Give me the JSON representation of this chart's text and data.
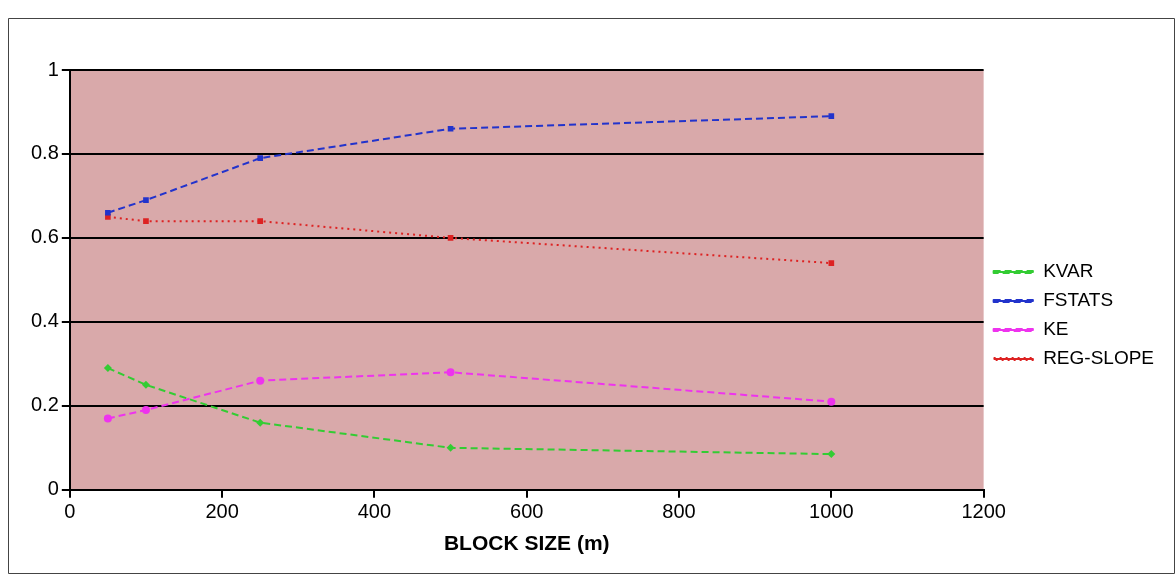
{
  "chart_data": {
    "type": "line",
    "xlabel": "BLOCK SIZE (m)",
    "x": [
      50,
      100,
      250,
      500,
      1000
    ],
    "series": [
      {
        "name": "KVAR",
        "color": "#33cc33",
        "values": [
          0.29,
          0.25,
          0.16,
          0.1,
          0.085
        ],
        "marker": "diamond",
        "line_style": "dashed"
      },
      {
        "name": "FSTATS",
        "color": "#2233cc",
        "values": [
          0.66,
          0.69,
          0.79,
          0.86,
          0.89
        ],
        "marker": "square",
        "line_style": "dashed"
      },
      {
        "name": "KE",
        "color": "#ee33ee",
        "values": [
          0.17,
          0.19,
          0.26,
          0.28,
          0.21
        ],
        "marker": "circle",
        "line_style": "dashed"
      },
      {
        "name": "REG-SLOPE",
        "color": "#dd2222",
        "values": [
          0.65,
          0.64,
          0.64,
          0.6,
          0.54
        ],
        "marker": "square",
        "line_style": "dotted"
      }
    ],
    "xlim": [
      0,
      1200
    ],
    "xticks": [
      0,
      200,
      400,
      600,
      800,
      1000,
      1200
    ],
    "ylim": [
      0,
      1
    ],
    "yticks": [
      0,
      0.2,
      0.4,
      0.6,
      0.8,
      1
    ],
    "grid": "y",
    "legend": "right"
  }
}
